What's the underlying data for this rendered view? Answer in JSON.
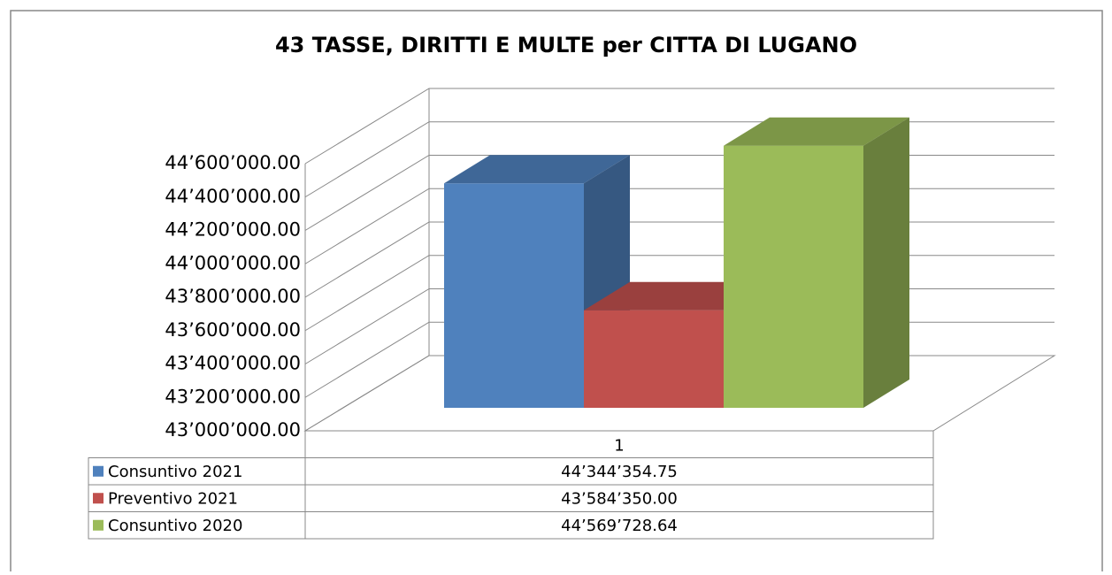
{
  "chart_data": {
    "type": "bar3d",
    "title": "43 TASSE, DIRITTI E MULTE per CITTA DI LUGANO",
    "categories": [
      "1"
    ],
    "series": [
      {
        "name": "Consuntivo 2021",
        "color": "#4f81bd",
        "values": [
          44344354.75
        ],
        "value_labels": [
          "44’344’354.75"
        ]
      },
      {
        "name": "Preventivo 2021",
        "color": "#c0504d",
        "values": [
          43584350.0
        ],
        "value_labels": [
          "43’584’350.00"
        ]
      },
      {
        "name": "Consuntivo 2020",
        "color": "#9bbb59",
        "values": [
          44569728.64
        ],
        "value_labels": [
          "44’569’728.64"
        ]
      }
    ],
    "ylim": [
      43000000,
      44600000
    ],
    "yticks": [
      {
        "value": 43000000,
        "label": "43’000’000.00"
      },
      {
        "value": 43200000,
        "label": "43’200’000.00"
      },
      {
        "value": 43400000,
        "label": "43’400’000.00"
      },
      {
        "value": 43600000,
        "label": "43’600’000.00"
      },
      {
        "value": 43800000,
        "label": "43’800’000.00"
      },
      {
        "value": 44000000,
        "label": "44’000’000.00"
      },
      {
        "value": 44200000,
        "label": "44’200’000.00"
      },
      {
        "value": 44400000,
        "label": "44’400’000.00"
      },
      {
        "value": 44600000,
        "label": "44’600’000.00"
      }
    ],
    "grid": true,
    "data_table": true
  }
}
